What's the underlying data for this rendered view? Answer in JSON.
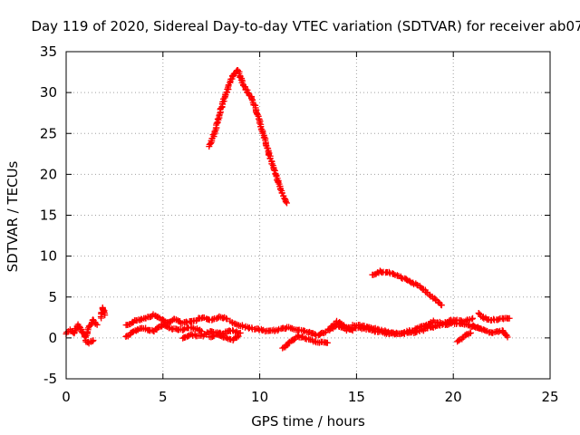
{
  "chart_data": {
    "type": "scatter",
    "title": "Day 119 of 2020, Sidereal Day-to-day VTEC variation (SDTVAR) for receiver ab07",
    "xlabel": "GPS time / hours",
    "ylabel": "SDTVAR / TECUs",
    "xlim": [
      0,
      25
    ],
    "ylim": [
      -5,
      35
    ],
    "x_ticks": [
      0,
      5,
      10,
      15,
      20,
      25
    ],
    "y_ticks": [
      -5,
      0,
      5,
      10,
      15,
      20,
      25,
      30,
      35
    ],
    "grid": true,
    "marker": "+",
    "series": [
      {
        "name": "SDTVAR",
        "color": "#ff0000",
        "segments": [
          {
            "x": [
              0.0,
              0.2,
              0.4,
              0.6,
              0.8,
              1.0,
              1.2,
              1.4,
              1.6
            ],
            "y": [
              0.5,
              1.0,
              0.5,
              1.6,
              1.0,
              0.0,
              1.5,
              2.2,
              1.6
            ]
          },
          {
            "x": [
              1.0,
              1.2,
              1.4
            ],
            "y": [
              -0.3,
              -0.6,
              -0.3
            ]
          },
          {
            "x": [
              1.8,
              1.9,
              2.0
            ],
            "y": [
              2.5,
              3.7,
              2.8
            ]
          },
          {
            "x": [
              3.1,
              3.5,
              4.0,
              4.5,
              4.8,
              5.2,
              5.6,
              6.0,
              6.5,
              7.0,
              7.5,
              8.0,
              8.3
            ],
            "y": [
              1.5,
              2.0,
              2.4,
              2.8,
              2.5,
              1.8,
              2.3,
              1.8,
              2.0,
              2.5,
              2.2,
              2.6,
              2.3
            ]
          },
          {
            "x": [
              3.1,
              3.5,
              4.0,
              4.5,
              5.0,
              5.5,
              6.0,
              6.5,
              7.0
            ],
            "y": [
              0.1,
              0.8,
              1.2,
              0.8,
              1.6,
              1.1,
              1.0,
              1.3,
              0.8
            ]
          },
          {
            "x": [
              6.0,
              6.5,
              7.0,
              7.5,
              8.0,
              8.5,
              9.0
            ],
            "y": [
              0.0,
              0.4,
              0.2,
              0.8,
              0.5,
              0.9,
              0.6
            ]
          },
          {
            "x": [
              7.4,
              7.8,
              8.2,
              8.6,
              8.9
            ],
            "y": [
              0.1,
              0.4,
              0.0,
              -0.2,
              0.2
            ]
          },
          {
            "x": [
              8.5,
              9.0,
              9.5,
              10.0,
              10.5,
              11.0,
              11.5,
              12.0,
              12.5,
              13.0,
              13.5,
              14.0,
              14.5,
              15.0,
              15.5,
              16.0,
              16.5,
              17.0,
              17.5,
              18.0,
              18.5,
              19.0,
              19.5,
              20.0,
              20.5,
              21.0
            ],
            "y": [
              2.0,
              1.5,
              1.2,
              1.0,
              0.8,
              1.0,
              1.3,
              1.0,
              0.7,
              0.3,
              0.9,
              1.5,
              1.0,
              1.3,
              1.1,
              0.8,
              0.6,
              0.5,
              0.7,
              1.0,
              1.5,
              2.0,
              1.8,
              2.2,
              2.0,
              2.4
            ]
          },
          {
            "x": [
              11.2,
              11.6,
              12.0,
              12.5,
              13.0,
              13.5
            ],
            "y": [
              -1.3,
              -0.4,
              0.2,
              -0.2,
              -0.5,
              -0.6
            ]
          },
          {
            "x": [
              13.6,
              14.0,
              14.4,
              14.8
            ],
            "y": [
              1.0,
              2.0,
              1.4,
              0.9
            ]
          },
          {
            "x": [
              14.8,
              15.5,
              16.2,
              17.0,
              17.8,
              18.5,
              19.2,
              20.0,
              20.7,
              21.3
            ],
            "y": [
              1.6,
              1.4,
              1.0,
              0.5,
              0.6,
              1.0,
              1.5,
              1.8,
              1.6,
              1.2
            ]
          },
          {
            "x": [
              20.2,
              20.6,
              20.9
            ],
            "y": [
              -0.5,
              0.3,
              0.6
            ]
          },
          {
            "x": [
              21.0,
              21.5,
              22.0,
              22.5,
              22.8
            ],
            "y": [
              1.5,
              1.0,
              0.6,
              0.9,
              0.1
            ]
          },
          {
            "x": [
              21.3,
              21.6,
              22.0,
              22.5,
              22.9
            ],
            "y": [
              3.0,
              2.4,
              2.2,
              2.3,
              2.4
            ]
          },
          {
            "x": [
              7.4,
              7.6,
              7.8,
              8.0,
              8.2,
              8.4,
              8.6,
              8.8,
              8.9,
              9.1,
              9.3,
              9.6,
              9.9,
              10.2,
              10.5,
              10.8,
              11.1,
              11.4
            ],
            "y": [
              23.4,
              24.6,
              26.3,
              28.0,
              29.5,
              30.8,
              32.0,
              32.7,
              32.6,
              31.2,
              30.4,
              29.3,
              27.2,
              24.8,
              22.3,
              20.2,
              18.1,
              16.5
            ]
          },
          {
            "x": [
              15.8,
              16.2,
              16.7,
              17.2,
              17.8,
              18.3,
              18.8,
              19.4
            ],
            "y": [
              7.7,
              8.1,
              8.0,
              7.5,
              6.9,
              6.2,
              5.2,
              4.0
            ]
          }
        ]
      }
    ]
  }
}
